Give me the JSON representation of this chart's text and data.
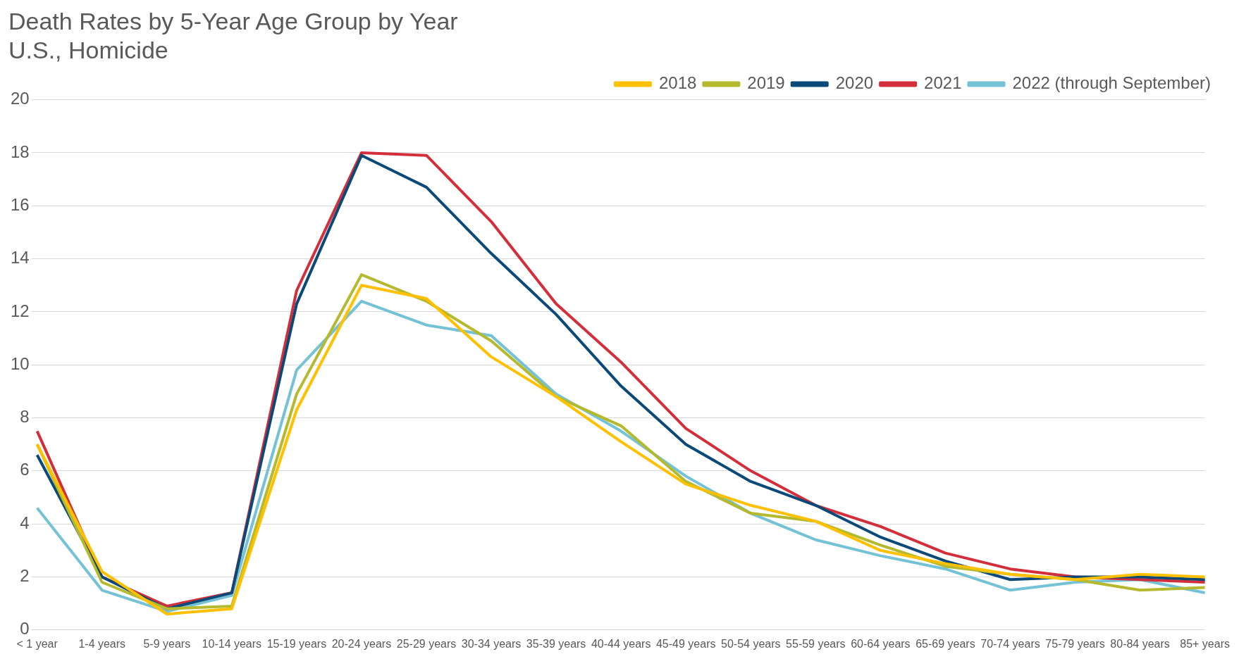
{
  "chart_data": {
    "type": "line",
    "title": [
      "Death Rates by 5-Year Age Group by Year",
      "U.S., Homicide"
    ],
    "categories": [
      "< 1 year",
      "1-4 years",
      "5-9 years",
      "10-14 years",
      "15-19 years",
      "20-24 years",
      "25-29 years",
      "30-34 years",
      "35-39 years",
      "40-44 years",
      "45-49 years",
      "50-54 years",
      "55-59 years",
      "60-64 years",
      "65-69 years",
      "70-74 years",
      "75-79 years",
      "80-84 years",
      "85+ years"
    ],
    "series": [
      {
        "name": "2018",
        "color": "#ffc000",
        "values": [
          7.0,
          2.2,
          0.6,
          0.8,
          8.3,
          13.0,
          12.5,
          10.3,
          8.8,
          7.1,
          5.5,
          4.7,
          4.1,
          3.0,
          2.5,
          2.1,
          1.9,
          2.1,
          2.0
        ]
      },
      {
        "name": "2019",
        "color": "#b5b92e",
        "values": [
          7.0,
          1.8,
          0.8,
          0.9,
          8.9,
          13.4,
          12.4,
          10.9,
          8.8,
          7.7,
          5.6,
          4.4,
          4.1,
          3.2,
          2.4,
          2.1,
          1.9,
          1.5,
          1.6
        ]
      },
      {
        "name": "2020",
        "color": "#0b4a78",
        "values": [
          6.6,
          2.0,
          0.8,
          1.4,
          12.3,
          17.9,
          16.7,
          14.2,
          11.9,
          9.2,
          7.0,
          5.6,
          4.7,
          3.5,
          2.6,
          1.9,
          2.0,
          2.0,
          1.9
        ]
      },
      {
        "name": "2021",
        "color": "#d32f3a",
        "values": [
          7.5,
          2.0,
          0.9,
          1.4,
          12.8,
          18.0,
          17.9,
          15.4,
          12.3,
          10.1,
          7.6,
          6.0,
          4.7,
          3.9,
          2.9,
          2.3,
          2.0,
          1.9,
          1.8
        ]
      },
      {
        "name": "2022 (through September)",
        "color": "#74c2d6",
        "values": [
          4.6,
          1.5,
          0.7,
          1.3,
          9.8,
          12.4,
          11.5,
          11.1,
          8.9,
          7.5,
          5.8,
          4.4,
          3.4,
          2.8,
          2.3,
          1.5,
          1.8,
          1.9,
          1.4
        ]
      }
    ],
    "ylim": [
      0,
      20
    ],
    "yticks": [
      0,
      2,
      4,
      6,
      8,
      10,
      12,
      14,
      16,
      18,
      20
    ],
    "grid": "y",
    "legend": "top right",
    "marker": "none",
    "line_style": "solid"
  }
}
